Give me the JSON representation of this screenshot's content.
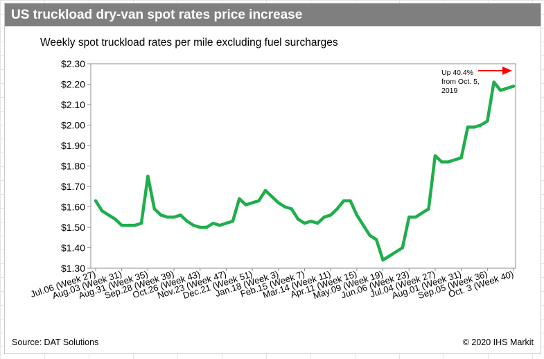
{
  "header": {
    "title": "US truckload dry-van spot rates price increase"
  },
  "footer": {
    "source": "Source: DAT Solutions",
    "copyright": "© 2020 IHS Markit"
  },
  "colors": {
    "line": "#1fae4b",
    "arrow": "#ff0000",
    "header_bg": "#7f7f7f"
  },
  "chart_data": {
    "type": "line",
    "title": "",
    "subtitle": "Weekly spot truckload rates per mile excluding fuel surcharges",
    "xlabel": "",
    "ylabel": "",
    "ylim": [
      1.3,
      2.3
    ],
    "y_ticks": [
      1.3,
      1.4,
      1.5,
      1.6,
      1.7,
      1.8,
      1.9,
      2.0,
      2.1,
      2.2,
      2.3
    ],
    "y_tick_labels": [
      "$1.30",
      "$1.40",
      "$1.50",
      "$1.60",
      "$1.70",
      "$1.80",
      "$1.90",
      "$2.00",
      "$2.10",
      "$2.20",
      "$2.30"
    ],
    "x_tick_labels": [
      "Jul.06 (Week 27)",
      "Aug.03 (Week 31)",
      "Aug.31 (Week 35)",
      "Sep.28 (Week 39)",
      "Oct.26 (Week 43)",
      "Nov.23 (Week 47)",
      "Dec.21 (Week 51)",
      "Jan.18 (Week 3)",
      "Feb.15 (Week 7)",
      "Mar.14 (Week 11)",
      "Apr.11 (Week 15)",
      "May.09 (Week 19)",
      "Jun.06 (Week 23)",
      "Jul.04 (Week 27)",
      "Aug.01 (Week 31)",
      "Sep.05 (Week 36)",
      "Oct. 3 (Week 40)"
    ],
    "grid": false,
    "legend": "none",
    "series": [
      {
        "values": [
          1.63,
          1.58,
          1.56,
          1.54,
          1.51,
          1.51,
          1.51,
          1.52,
          1.75,
          1.59,
          1.56,
          1.55,
          1.55,
          1.56,
          1.53,
          1.51,
          1.5,
          1.5,
          1.52,
          1.51,
          1.52,
          1.53,
          1.64,
          1.61,
          1.62,
          1.63,
          1.68,
          1.65,
          1.62,
          1.6,
          1.59,
          1.54,
          1.52,
          1.53,
          1.52,
          1.55,
          1.56,
          1.59,
          1.63,
          1.63,
          1.56,
          1.51,
          1.46,
          1.44,
          1.34,
          1.36,
          1.38,
          1.4,
          1.55,
          1.55,
          1.57,
          1.59,
          1.85,
          1.82,
          1.82,
          1.83,
          1.84,
          1.99,
          1.99,
          2.0,
          2.02,
          2.21,
          2.17,
          2.18,
          2.19
        ]
      }
    ],
    "annotation": {
      "lines": [
        "Up 40.4%",
        "from Oct. 5,",
        "2019"
      ]
    }
  }
}
